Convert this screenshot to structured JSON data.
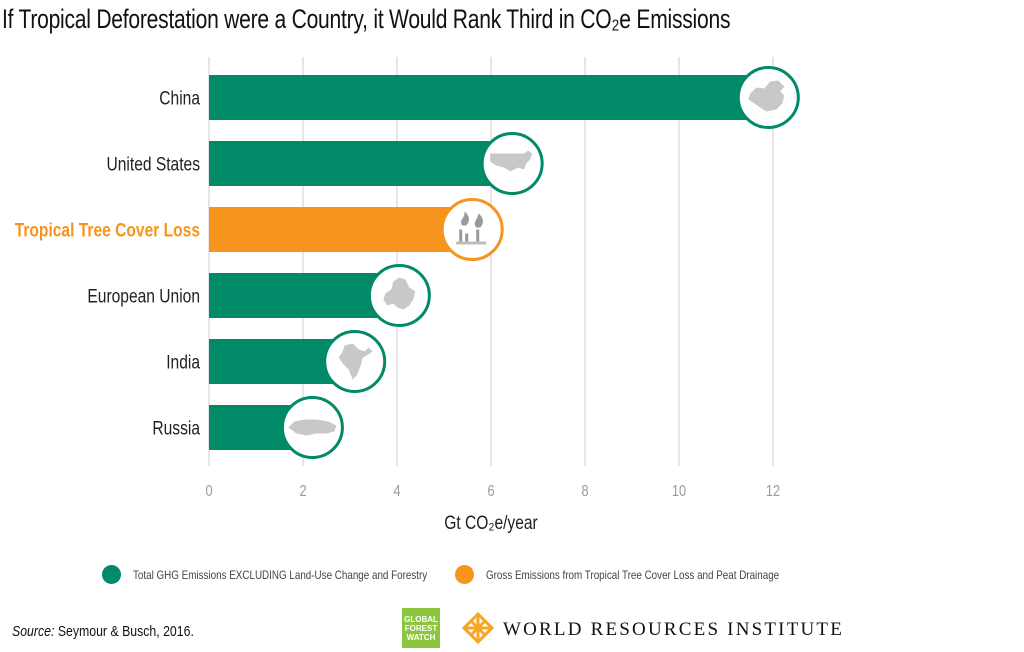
{
  "title": "If Tropical Deforestation were a Country, it Would Rank Third in CO₂e Emissions",
  "colors": {
    "green": "#008A68",
    "orange": "#F7941D",
    "grid": "#D9D9D9",
    "map_gray": "#C8C8C8"
  },
  "chart_data": {
    "type": "bar",
    "orientation": "horizontal",
    "title": "If Tropical Deforestation were a Country, it Would Rank Third in CO₂e Emissions",
    "categories": [
      "China",
      "United States",
      "Tropical Tree Cover Loss",
      "European Union",
      "India",
      "Russia"
    ],
    "values": [
      11.9,
      6.45,
      5.6,
      4.05,
      3.1,
      2.2
    ],
    "series_membership": [
      "green",
      "green",
      "orange",
      "green",
      "green",
      "green"
    ],
    "highlight": "Tropical Tree Cover Loss",
    "icons": [
      "china-map-icon",
      "usa-map-icon",
      "deforestation-icon",
      "eu-map-icon",
      "india-map-icon",
      "russia-map-icon"
    ],
    "xlabel": "Gt CO₂e/year",
    "ylabel": "",
    "xlim": [
      0,
      12
    ],
    "xticks": [
      0,
      2,
      4,
      6,
      8,
      10,
      12
    ],
    "xtick_labels": [
      "0",
      "2",
      "4",
      "6",
      "8",
      "10",
      "12"
    ],
    "grid": true,
    "legend_position": "bottom",
    "legend": [
      {
        "label": "Total GHG Emissions EXCLUDING Land-Use Change and Forestry",
        "color": "#008A68"
      },
      {
        "label": "Gross Emissions from Tropical Tree Cover Loss and Peat Drainage",
        "color": "#F7941D"
      }
    ]
  },
  "footer": {
    "source_label": "Source:",
    "source_text": " Seymour & Busch, 2016.",
    "gfw_logo_lines": [
      "GLOBAL",
      "FOREST",
      "WATCH"
    ],
    "wri_text": "WORLD RESOURCES INSTITUTE"
  }
}
